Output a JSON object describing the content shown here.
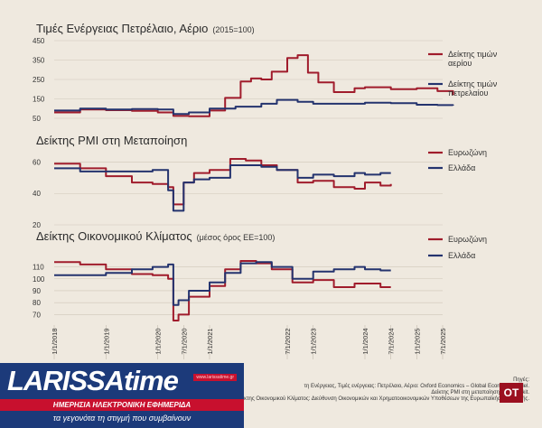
{
  "chart_data": [
    {
      "type": "line",
      "title": "Τιμές Ενέργειας Πετρέλαιο, Αέριο",
      "subtitle": "(2015=100)",
      "yticks": [
        50,
        150,
        250,
        350,
        450
      ],
      "ylim": [
        50,
        450
      ],
      "series": [
        {
          "name": "Δείκτης τιμών αερίου",
          "color": "#a01c2c",
          "x": [
            2018.0,
            2018.5,
            2019.0,
            2019.5,
            2020.0,
            2020.3,
            2020.6,
            2021.0,
            2021.3,
            2021.6,
            2021.8,
            2022.0,
            2022.2,
            2022.5,
            2022.7,
            2022.9,
            2023.1,
            2023.4,
            2023.8,
            2024.0,
            2024.5,
            2025.0,
            2025.4,
            2025.7
          ],
          "y": [
            80,
            95,
            92,
            88,
            80,
            62,
            60,
            90,
            155,
            240,
            255,
            250,
            290,
            360,
            375,
            285,
            235,
            185,
            205,
            210,
            200,
            205,
            190,
            170
          ]
        },
        {
          "name": "Δείκτης τιμών πετρελαίου",
          "color": "#24336e",
          "x": [
            2018.0,
            2018.5,
            2019.0,
            2019.5,
            2020.0,
            2020.3,
            2020.6,
            2021.0,
            2021.5,
            2022.0,
            2022.3,
            2022.7,
            2023.0,
            2023.5,
            2024.0,
            2024.5,
            2025.0,
            2025.4,
            2025.7
          ],
          "y": [
            90,
            100,
            95,
            98,
            95,
            72,
            80,
            100,
            110,
            125,
            145,
            135,
            125,
            125,
            130,
            128,
            120,
            118,
            115
          ]
        }
      ]
    },
    {
      "type": "line",
      "title": "Δείκτης PMI στη Μεταποίηση",
      "yticks": [
        20,
        40,
        60
      ],
      "ylim": [
        20,
        62
      ],
      "series": [
        {
          "name": "Ευρωζώνη",
          "color": "#a01c2c",
          "x": [
            2018.0,
            2018.5,
            2019.0,
            2019.5,
            2019.9,
            2020.2,
            2020.3,
            2020.5,
            2020.7,
            2021.0,
            2021.4,
            2021.7,
            2022.0,
            2022.3,
            2022.7,
            2023.0,
            2023.4,
            2023.8,
            2024.0,
            2024.3,
            2024.5
          ],
          "y": [
            59,
            56,
            51,
            47,
            46,
            44,
            33,
            47,
            53,
            55,
            62,
            61,
            58,
            55,
            47,
            48,
            44,
            43,
            47,
            45,
            46
          ]
        },
        {
          "name": "Ελλάδα",
          "color": "#24336e",
          "x": [
            2018.0,
            2018.5,
            2019.0,
            2019.5,
            2019.9,
            2020.2,
            2020.3,
            2020.5,
            2020.7,
            2021.0,
            2021.4,
            2021.7,
            2022.0,
            2022.3,
            2022.7,
            2023.0,
            2023.4,
            2023.8,
            2024.0,
            2024.3,
            2024.5
          ],
          "y": [
            56,
            54,
            54,
            54,
            55,
            42,
            29,
            47,
            49,
            50,
            58,
            58,
            57,
            55,
            50,
            52,
            51,
            53,
            52,
            53,
            53
          ]
        }
      ]
    },
    {
      "type": "line",
      "title": "Δείκτης Οικονομικού Κλίματος",
      "subtitle": "(μέσος όρος ΕΕ=100)",
      "yticks": [
        70,
        80,
        90,
        100,
        110
      ],
      "ylim": [
        68,
        118
      ],
      "series": [
        {
          "name": "Ευρωζώνη",
          "color": "#a01c2c",
          "x": [
            2018.0,
            2018.5,
            2019.0,
            2019.5,
            2019.9,
            2020.2,
            2020.3,
            2020.4,
            2020.6,
            2021.0,
            2021.3,
            2021.6,
            2021.9,
            2022.2,
            2022.6,
            2023.0,
            2023.4,
            2023.8,
            2024.0,
            2024.3,
            2024.5
          ],
          "y": [
            114,
            112,
            108,
            104,
            103,
            100,
            65,
            70,
            85,
            94,
            108,
            115,
            113,
            108,
            97,
            99,
            93,
            96,
            96,
            93,
            93
          ]
        },
        {
          "name": "Ελλάδα",
          "color": "#24336e",
          "x": [
            2018.0,
            2018.5,
            2019.0,
            2019.5,
            2019.9,
            2020.2,
            2020.3,
            2020.4,
            2020.6,
            2021.0,
            2021.3,
            2021.6,
            2021.9,
            2022.2,
            2022.6,
            2023.0,
            2023.4,
            2023.8,
            2024.0,
            2024.3,
            2024.5
          ],
          "y": [
            103,
            103,
            105,
            108,
            110,
            112,
            78,
            82,
            90,
            97,
            105,
            113,
            114,
            110,
            100,
            106,
            108,
            110,
            108,
            107,
            107
          ]
        }
      ]
    }
  ],
  "x_axis": {
    "xlim": [
      2018.0,
      2025.5
    ],
    "ticks": [
      {
        "v": 2018.0,
        "label": "1/1/2018"
      },
      {
        "v": 2019.0,
        "label": "1/1/2019"
      },
      {
        "v": 2020.0,
        "label": "1/1/2020"
      },
      {
        "v": 2020.5,
        "label": "7/1/2020"
      },
      {
        "v": 2021.0,
        "label": "1/1/2021"
      },
      {
        "v": 2022.5,
        "label": "7/1/2022"
      },
      {
        "v": 2023.0,
        "label": "1/1/2023"
      },
      {
        "v": 2024.0,
        "label": "1/1/2024"
      },
      {
        "v": 2024.5,
        "label": "7/1/2024"
      },
      {
        "v": 2025.0,
        "label": "1/1/2025"
      },
      {
        "v": 2025.5,
        "label": "7/1/2025"
      }
    ]
  },
  "source": {
    "label": "Πηγές:",
    "line1": "τη Ενέργειας, Τιμές ενέργειας: Πετρέλαιο, Αέριο: Oxford Economics – Global Economic Model.",
    "line2": "Δείκτης PMI στη μεταποίηση: HIS Markit.",
    "line3": "ίκτης Οικονομικού Κλίματος: Διεύθυνση Οικονομικών και Χρηματοοικονομικών Υποθέσεων της Ευρωπαϊκής Επιτροπής."
  },
  "banner": {
    "brand": "LARISSAtime",
    "url": "www.larissatime.gr",
    "line1": "ΗΜΕΡΗΣΙΑ ΗΛΕΚΤΡΟΝΙΚΗ ΕΦΗΜΕΡΙΔΑ",
    "line2": "τα γεγονότα τη στιγμή που συμβαίνουν"
  },
  "ot_logo": "ΟΤ"
}
